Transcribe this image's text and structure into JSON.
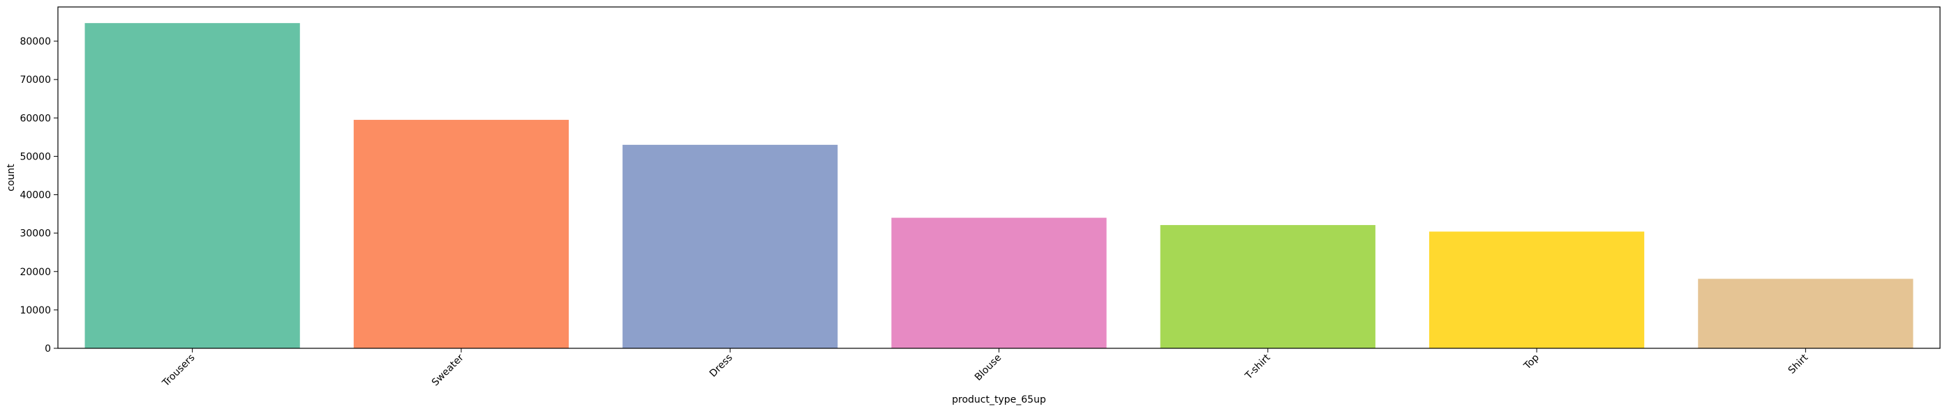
{
  "chart_data": {
    "type": "bar",
    "title": "",
    "xlabel": "product_type_65up",
    "ylabel": "count",
    "categories": [
      "Trousers",
      "Sweater",
      "Dress",
      "Blouse",
      "T-shirt",
      "Top",
      "Shirt"
    ],
    "values": [
      84700,
      59500,
      53000,
      34000,
      32100,
      30400,
      18100
    ],
    "colors": [
      "#66c2a5",
      "#fc8d62",
      "#8da0cb",
      "#e78ac3",
      "#a6d854",
      "#ffd92f",
      "#e5c494"
    ],
    "yticks": [
      0,
      10000,
      20000,
      30000,
      40000,
      50000,
      60000,
      70000,
      80000
    ],
    "ylim": [
      0,
      88900
    ],
    "grid": false,
    "legend": "none"
  }
}
